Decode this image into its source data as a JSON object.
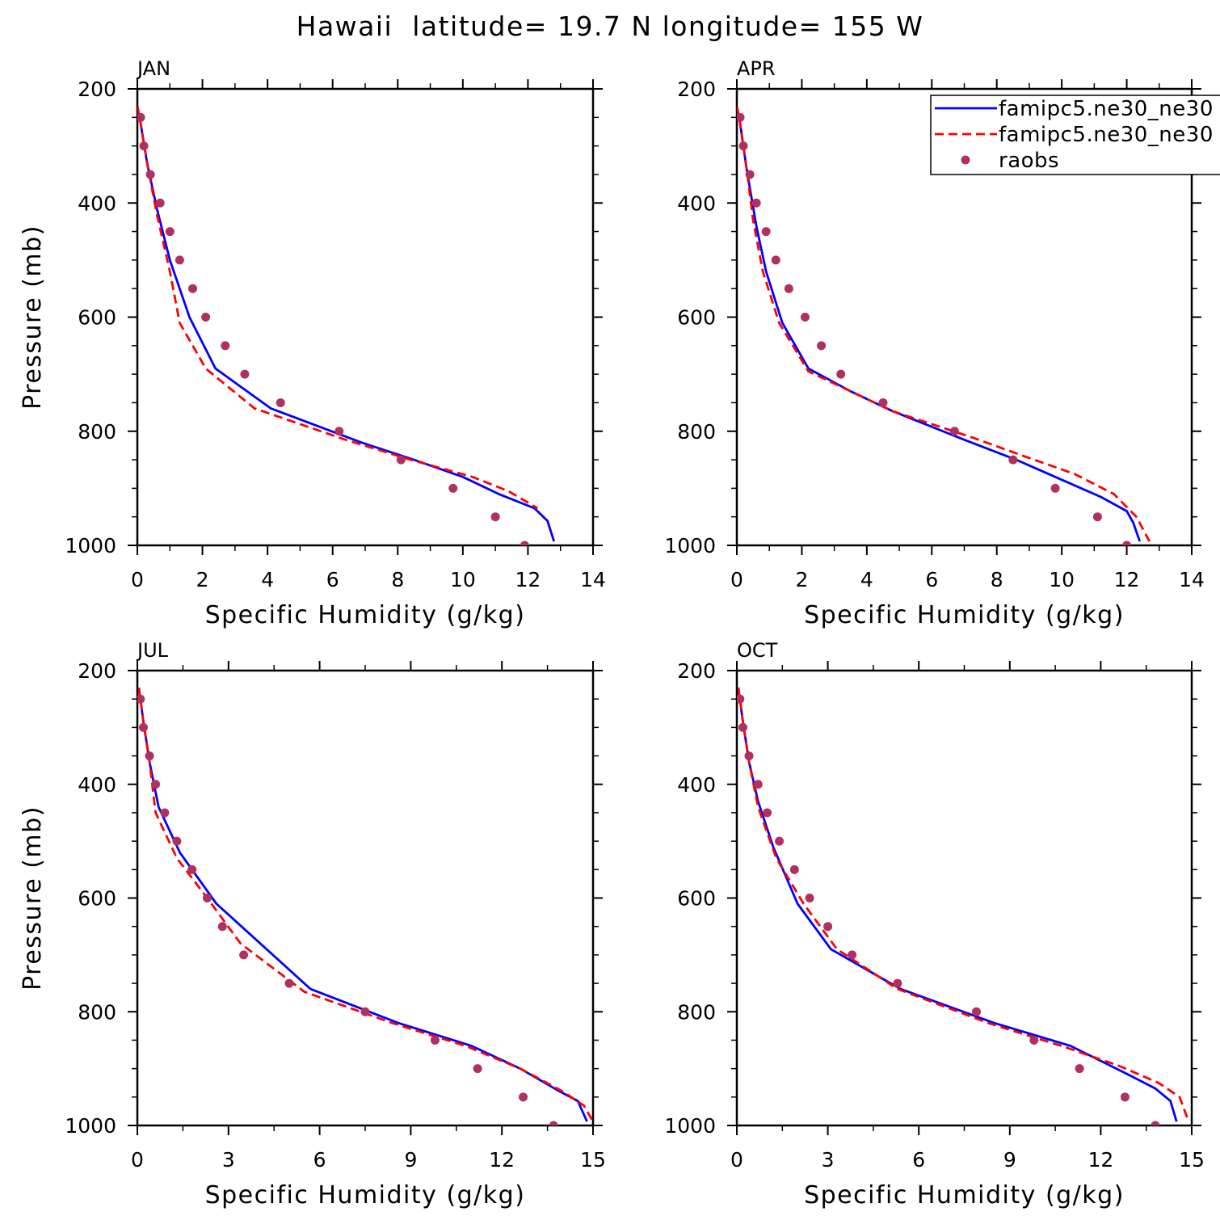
{
  "figure": {
    "title": "Hawaii  latitude= 19.7 N longitude= 155 W"
  },
  "legend": {
    "entries": [
      {
        "label": "famipc5.ne30_ne30",
        "style": "solid",
        "color": "#0000ff"
      },
      {
        "label": "famipc5.ne30_ne30",
        "style": "dashed",
        "color": "#ff0000"
      },
      {
        "label": "raobs",
        "style": "marker",
        "color": "#b03060"
      }
    ]
  },
  "colors": {
    "model1": "#0000ff",
    "model2": "#ff0000",
    "obs": "#b03060"
  },
  "chart_data": [
    {
      "type": "line",
      "title": "JAN",
      "xlabel": "Specific Humidity (g/kg)",
      "ylabel": "Pressure (mb)",
      "xlim": [
        0,
        14
      ],
      "ylim": [
        1000,
        200
      ],
      "y_inverted": true,
      "xticks": [
        0,
        2,
        4,
        6,
        8,
        10,
        12,
        14
      ],
      "yticks": [
        200,
        400,
        600,
        800,
        1000
      ],
      "series": [
        {
          "style": "solid",
          "color": "#0000ff",
          "x": [
            0.0,
            0.1,
            0.3,
            0.6,
            1.0,
            1.6,
            2.4,
            4.1,
            6.9,
            8.5,
            10.0,
            11.1,
            12.2,
            12.6,
            12.8
          ],
          "y": [
            230,
            260,
            330,
            410,
            500,
            600,
            690,
            760,
            820,
            850,
            880,
            910,
            935,
            957,
            993
          ]
        },
        {
          "style": "dashed",
          "color": "#ff0000",
          "x": [
            0.0,
            0.1,
            0.3,
            0.6,
            1.0,
            1.3,
            2.1,
            3.6,
            6.4,
            8.4,
            10.3,
            11.4,
            12.3
          ],
          "y": [
            230,
            260,
            330,
            420,
            520,
            610,
            690,
            760,
            815,
            850,
            880,
            905,
            935
          ]
        },
        {
          "style": "marker",
          "color": "#b03060",
          "x": [
            0.1,
            0.2,
            0.4,
            0.7,
            1.0,
            1.3,
            1.7,
            2.1,
            2.7,
            3.3,
            4.4,
            6.2,
            8.1,
            9.7,
            11.0,
            11.9
          ],
          "y": [
            250,
            300,
            350,
            400,
            450,
            500,
            550,
            600,
            650,
            700,
            750,
            800,
            850,
            900,
            950,
            1000
          ]
        }
      ]
    },
    {
      "type": "line",
      "title": "APR",
      "xlabel": "Specific Humidity (g/kg)",
      "ylabel": "",
      "xlim": [
        0,
        14
      ],
      "ylim": [
        1000,
        200
      ],
      "y_inverted": true,
      "xticks": [
        0,
        2,
        4,
        6,
        8,
        10,
        12,
        14
      ],
      "yticks": [
        200,
        400,
        600,
        800,
        1000
      ],
      "series": [
        {
          "style": "solid",
          "color": "#0000ff",
          "x": [
            0.0,
            0.1,
            0.3,
            0.6,
            0.9,
            1.4,
            2.2,
            3.5,
            4.8,
            7.0,
            8.6,
            10.0,
            11.2,
            12.0,
            12.2,
            12.4
          ],
          "y": [
            230,
            260,
            340,
            440,
            520,
            610,
            690,
            730,
            765,
            815,
            850,
            885,
            915,
            940,
            960,
            993
          ]
        },
        {
          "style": "dashed",
          "color": "#ff0000",
          "x": [
            0.0,
            0.1,
            0.3,
            0.5,
            0.8,
            1.3,
            2.2,
            3.5,
            4.8,
            7.2,
            8.9,
            10.4,
            11.6,
            12.3,
            12.7
          ],
          "y": [
            230,
            260,
            340,
            430,
            520,
            610,
            695,
            730,
            765,
            810,
            845,
            875,
            910,
            950,
            993
          ]
        },
        {
          "style": "marker",
          "color": "#b03060",
          "x": [
            0.1,
            0.2,
            0.4,
            0.6,
            0.9,
            1.2,
            1.6,
            2.1,
            2.6,
            3.2,
            4.5,
            6.7,
            8.5,
            9.8,
            11.1,
            12.0
          ],
          "y": [
            250,
            300,
            350,
            400,
            450,
            500,
            550,
            600,
            650,
            700,
            750,
            800,
            850,
            900,
            950,
            1000
          ]
        }
      ]
    },
    {
      "type": "line",
      "title": "JUL",
      "xlabel": "Specific Humidity (g/kg)",
      "ylabel": "Pressure (mb)",
      "xlim": [
        0,
        15
      ],
      "ylim": [
        1000,
        200
      ],
      "y_inverted": true,
      "xticks": [
        0,
        3,
        6,
        9,
        12,
        15
      ],
      "yticks": [
        200,
        400,
        600,
        800,
        1000
      ],
      "series": [
        {
          "style": "solid",
          "color": "#0000ff",
          "x": [
            0.05,
            0.2,
            0.4,
            0.7,
            1.4,
            2.6,
            5.7,
            8.6,
            11.0,
            12.6,
            13.9,
            14.5,
            14.8
          ],
          "y": [
            230,
            290,
            360,
            440,
            520,
            610,
            760,
            820,
            860,
            900,
            940,
            957,
            993
          ]
        },
        {
          "style": "dashed",
          "color": "#ff0000",
          "x": [
            0.05,
            0.2,
            0.4,
            0.6,
            1.3,
            2.3,
            3.4,
            5.5,
            8.4,
            10.8,
            12.6,
            14.0,
            14.7,
            15.0
          ],
          "y": [
            230,
            290,
            360,
            450,
            530,
            600,
            680,
            765,
            820,
            860,
            900,
            940,
            965,
            993
          ]
        },
        {
          "style": "marker",
          "color": "#b03060",
          "x": [
            0.1,
            0.2,
            0.4,
            0.6,
            0.9,
            1.3,
            1.8,
            2.3,
            2.8,
            3.5,
            5.0,
            7.5,
            9.8,
            11.2,
            12.7,
            13.7
          ],
          "y": [
            250,
            300,
            350,
            400,
            450,
            500,
            550,
            600,
            650,
            700,
            750,
            800,
            850,
            900,
            950,
            1000
          ]
        }
      ]
    },
    {
      "type": "line",
      "title": "OCT",
      "xlabel": "Specific Humidity (g/kg)",
      "ylabel": "",
      "xlim": [
        0,
        15
      ],
      "ylim": [
        1000,
        200
      ],
      "y_inverted": true,
      "xticks": [
        0,
        3,
        6,
        9,
        12,
        15
      ],
      "yticks": [
        200,
        400,
        600,
        800,
        1000
      ],
      "series": [
        {
          "style": "solid",
          "color": "#0000ff",
          "x": [
            0.05,
            0.2,
            0.4,
            0.7,
            1.2,
            2.0,
            3.1,
            5.4,
            8.5,
            11.0,
            12.7,
            13.8,
            14.3,
            14.5
          ],
          "y": [
            230,
            290,
            360,
            430,
            510,
            610,
            690,
            760,
            820,
            860,
            905,
            935,
            957,
            993
          ]
        },
        {
          "style": "dashed",
          "color": "#ff0000",
          "x": [
            0.05,
            0.2,
            0.4,
            0.7,
            1.3,
            2.2,
            3.3,
            5.3,
            8.3,
            10.7,
            12.6,
            13.9,
            14.6,
            14.9
          ],
          "y": [
            230,
            290,
            360,
            440,
            530,
            610,
            690,
            760,
            820,
            860,
            895,
            925,
            950,
            993
          ]
        },
        {
          "style": "marker",
          "color": "#b03060",
          "x": [
            0.1,
            0.2,
            0.4,
            0.7,
            1.0,
            1.4,
            1.9,
            2.4,
            3.0,
            3.8,
            5.3,
            7.9,
            9.8,
            11.3,
            12.8,
            13.8
          ],
          "y": [
            250,
            300,
            350,
            400,
            450,
            500,
            550,
            600,
            650,
            700,
            750,
            800,
            850,
            900,
            950,
            1000
          ]
        }
      ]
    }
  ]
}
